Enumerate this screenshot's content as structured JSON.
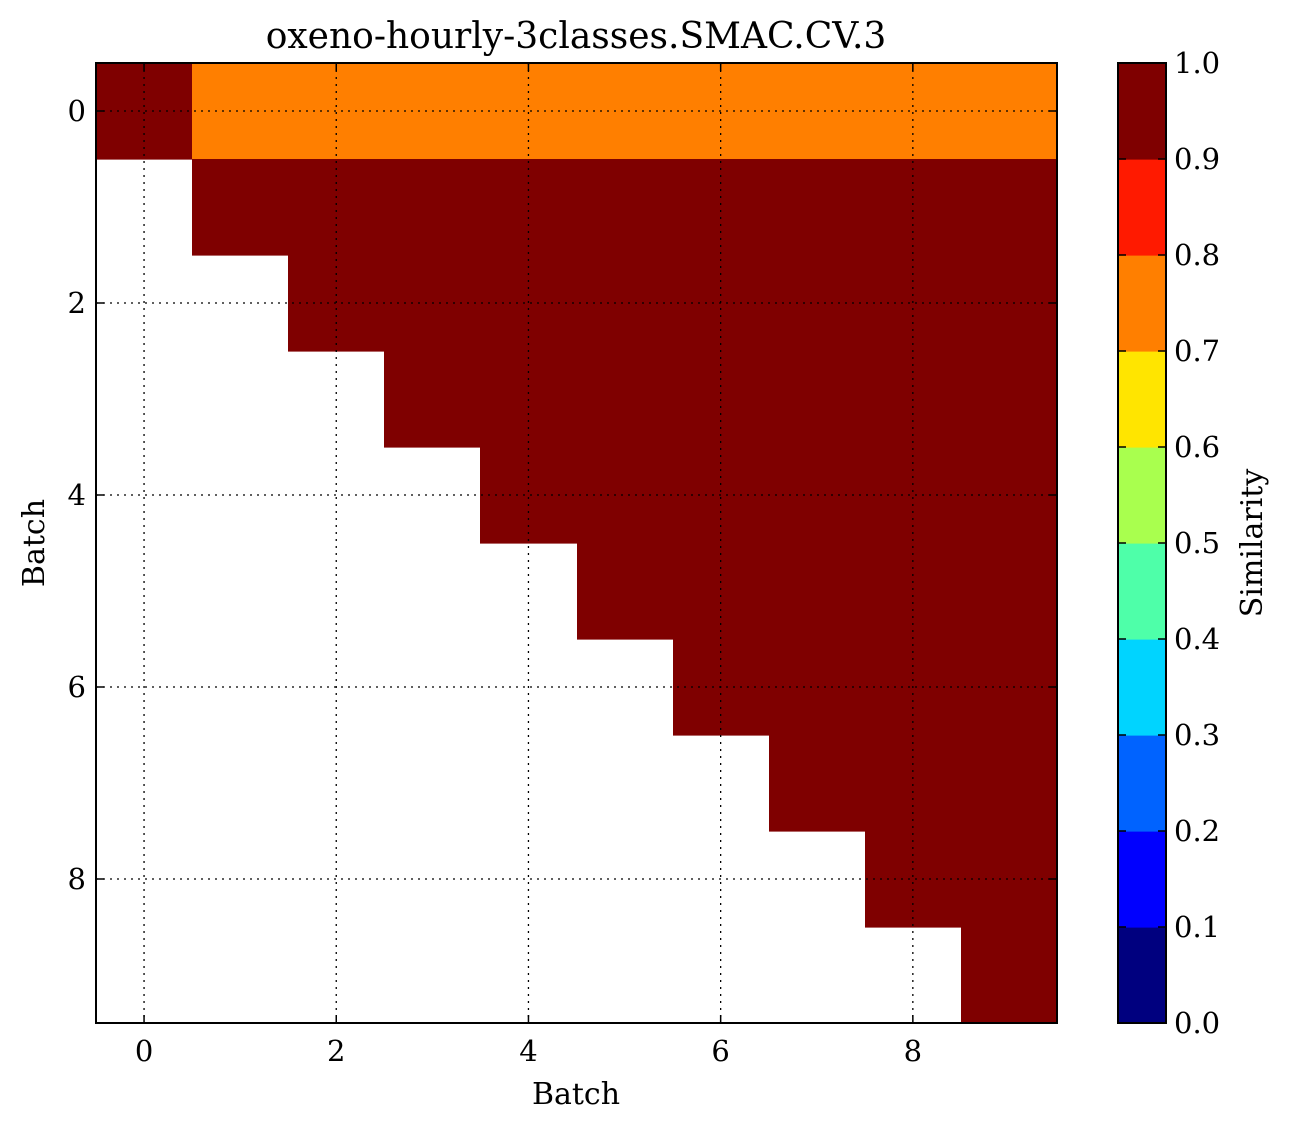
{
  "chart_data": {
    "type": "heatmap",
    "title": "oxeno-hourly-3classes.SMAC.CV.3",
    "xlabel": "Batch",
    "ylabel": "Batch",
    "x_ticks": [
      "0",
      "2",
      "4",
      "6",
      "8"
    ],
    "y_ticks": [
      "0",
      "2",
      "4",
      "6",
      "8"
    ],
    "x_range": [
      -0.5,
      9.5
    ],
    "y_range": [
      -0.5,
      9.5
    ],
    "y_inverted": true,
    "grid": true,
    "matrix": [
      [
        1.0,
        0.75,
        0.75,
        0.75,
        0.75,
        0.75,
        0.75,
        0.75,
        0.75,
        0.75
      ],
      [
        null,
        1.0,
        1.0,
        1.0,
        1.0,
        1.0,
        1.0,
        1.0,
        1.0,
        1.0
      ],
      [
        null,
        null,
        1.0,
        1.0,
        1.0,
        1.0,
        1.0,
        1.0,
        1.0,
        1.0
      ],
      [
        null,
        null,
        null,
        1.0,
        1.0,
        1.0,
        1.0,
        1.0,
        1.0,
        1.0
      ],
      [
        null,
        null,
        null,
        null,
        1.0,
        1.0,
        1.0,
        1.0,
        1.0,
        1.0
      ],
      [
        null,
        null,
        null,
        null,
        null,
        1.0,
        1.0,
        1.0,
        1.0,
        1.0
      ],
      [
        null,
        null,
        null,
        null,
        null,
        null,
        1.0,
        1.0,
        1.0,
        1.0
      ],
      [
        null,
        null,
        null,
        null,
        null,
        null,
        null,
        1.0,
        1.0,
        1.0
      ],
      [
        null,
        null,
        null,
        null,
        null,
        null,
        null,
        null,
        1.0,
        1.0
      ],
      [
        null,
        null,
        null,
        null,
        null,
        null,
        null,
        null,
        null,
        1.0
      ]
    ],
    "colorbar": {
      "label": "Similarity",
      "range": [
        0.0,
        1.0
      ],
      "ticks": [
        "0.0",
        "0.1",
        "0.2",
        "0.3",
        "0.4",
        "0.5",
        "0.6",
        "0.7",
        "0.8",
        "0.9",
        "1.0"
      ],
      "colors": [
        "#00007f",
        "#0000ff",
        "#0063ff",
        "#00d4ff",
        "#4effa9",
        "#a9ff4e",
        "#ffe500",
        "#ff7f00",
        "#ff1a00",
        "#7f0000"
      ]
    }
  }
}
